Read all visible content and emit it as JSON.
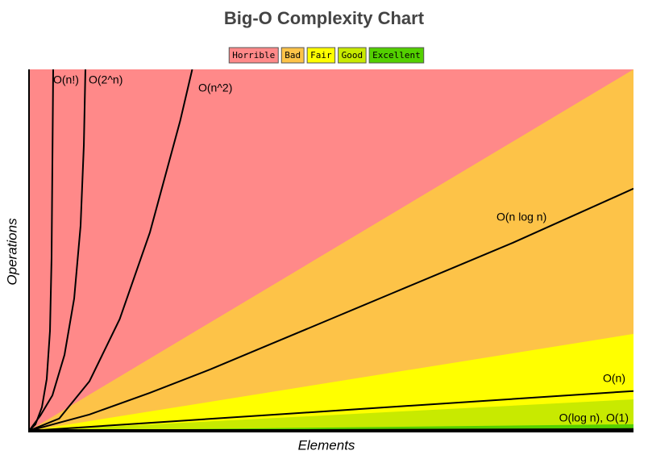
{
  "chart_data": {
    "type": "area",
    "title": "Big-O Complexity Chart",
    "x_label": "Elements",
    "y_label": "Operations",
    "xlim": [
      0,
      100
    ],
    "ylim": [
      0,
      100
    ],
    "legend": "top",
    "series": [
      {
        "name": "Horrible",
        "color": "#ff8989",
        "x": [
          0,
          100
        ],
        "values": [
          100,
          100
        ]
      },
      {
        "name": "Bad",
        "color": "#fdc348",
        "x": [
          0,
          100
        ],
        "values": [
          0,
          100
        ]
      },
      {
        "name": "Fair",
        "color": "#ffff00",
        "x": [
          0,
          100
        ],
        "values": [
          0,
          26.8
        ]
      },
      {
        "name": "Good",
        "color": "#c8ea00",
        "x": [
          0,
          100
        ],
        "values": [
          0,
          8.7
        ]
      },
      {
        "name": "Excellent",
        "color": "#53d000",
        "x": [
          0,
          100
        ],
        "values": [
          0,
          1.8
        ]
      }
    ],
    "curves": [
      {
        "name": "O(n!)",
        "color": "#000000",
        "x": [
          0,
          1.07,
          2.13,
          2.93,
          3.47,
          3.73,
          3.87,
          4
        ],
        "values": [
          0,
          1.8,
          6.5,
          14.3,
          27.7,
          47.8,
          74.6,
          100
        ]
      },
      {
        "name": "O(2^n)",
        "color": "#000000",
        "x": [
          0,
          1.87,
          3.87,
          5.87,
          7.47,
          8.53,
          9.07,
          9.33
        ],
        "values": [
          0,
          4.2,
          9.8,
          21,
          36.6,
          56.7,
          79,
          100
        ]
      },
      {
        "name": "O(n^2)",
        "color": "#000000",
        "x": [
          0,
          5,
          10,
          15,
          20,
          25,
          27
        ],
        "values": [
          0,
          3.4,
          13.7,
          30.9,
          54.9,
          85.7,
          100
        ]
      },
      {
        "name": "O(n log n)",
        "color": "#000000",
        "x": [
          0,
          10,
          20,
          30,
          40,
          50,
          60,
          70,
          80,
          90,
          100
        ],
        "values": [
          0,
          4.5,
          10.5,
          17,
          24,
          31,
          38,
          45,
          52,
          59.5,
          67
        ]
      },
      {
        "name": "O(n)",
        "color": "#000000",
        "x": [
          0,
          100
        ],
        "values": [
          0,
          11
        ]
      },
      {
        "name": "O(log n), O(1)",
        "color": "#000000",
        "x": [
          0,
          100
        ],
        "values": [
          0,
          0.5
        ]
      }
    ]
  }
}
